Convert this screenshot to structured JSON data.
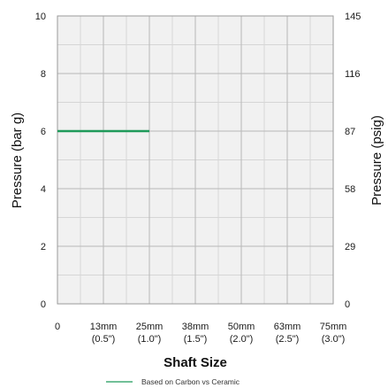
{
  "chart_data": {
    "type": "line",
    "title": "",
    "xlabel": "Shaft Size",
    "ylabel": "Pressure (bar g)",
    "y2label": "Pressure (psig)",
    "x_ticks": [
      {
        "value": 0,
        "label": "0",
        "sublabel": ""
      },
      {
        "value": 1,
        "label": "13mm",
        "sublabel": "(0.5\")"
      },
      {
        "value": 2,
        "label": "25mm",
        "sublabel": "(1.0\")"
      },
      {
        "value": 3,
        "label": "38mm",
        "sublabel": "(1.5\")"
      },
      {
        "value": 4,
        "label": "50mm",
        "sublabel": "(2.0\")"
      },
      {
        "value": 5,
        "label": "63mm",
        "sublabel": "(2.5\")"
      },
      {
        "value": 6,
        "label": "75mm",
        "sublabel": "(3.0\")"
      }
    ],
    "xlim": [
      0,
      6
    ],
    "ylim": [
      0,
      10
    ],
    "y_ticks": [
      0,
      2,
      4,
      6,
      8,
      10
    ],
    "y2_ticks": [
      {
        "value": 0,
        "label": "0"
      },
      {
        "value": 2,
        "label": "29"
      },
      {
        "value": 4,
        "label": "58"
      },
      {
        "value": 6,
        "label": "87"
      },
      {
        "value": 8,
        "label": "116"
      },
      {
        "value": 10,
        "label": "145"
      }
    ],
    "grid": true,
    "legend_position": "bottom-center",
    "series": [
      {
        "name": "Based on Carbon vs Ceramic",
        "color": "#1f9a5a",
        "x": [
          0,
          2
        ],
        "y": [
          6,
          6
        ]
      }
    ]
  }
}
